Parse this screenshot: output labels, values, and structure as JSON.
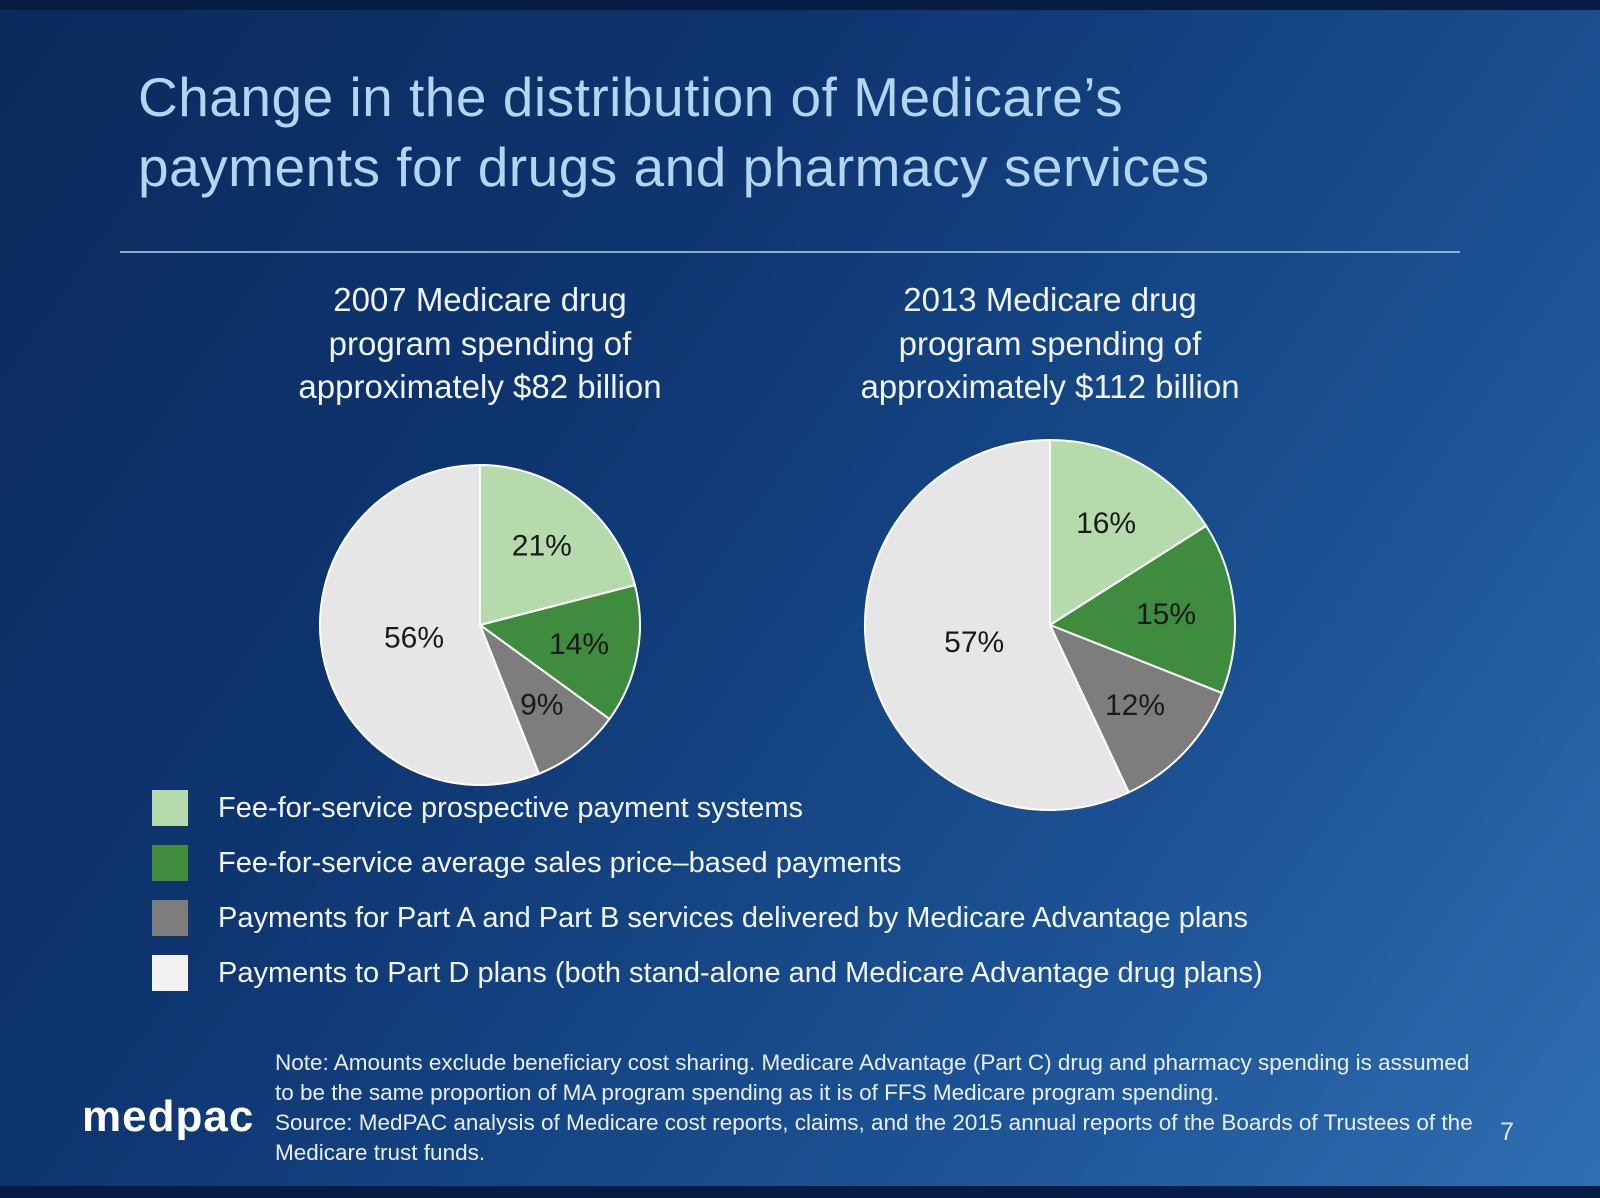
{
  "slide": {
    "title_line1": "Change in the distribution of Medicare’s",
    "title_line2": "payments for drugs and pharmacy services",
    "page_number": "7",
    "logo_text": "medpac"
  },
  "chart_data": [
    {
      "type": "pie",
      "title": "2007 Medicare drug program spending of approximately $82 billion",
      "title_lines": [
        "2007 Medicare drug",
        "program spending of",
        "approximately $82 billion"
      ],
      "labels": [
        "Fee-for-service prospective payment systems",
        "Fee-for-service average sales price–based payments",
        "Payments for Part A and Part B services delivered by Medicare Advantage plans",
        "Payments to Part D plans (both stand-alone and Medicare Advantage drug plans)"
      ],
      "values": [
        21,
        14,
        9,
        56
      ],
      "value_labels": [
        "21%",
        "14%",
        "9%",
        "56%"
      ],
      "colors": [
        "#b5dbad",
        "#3f8c3f",
        "#7d7d7d",
        "#e6e6e6"
      ],
      "start_angle_deg": -90,
      "direction": "clockwise",
      "legend_position": "bottom-left"
    },
    {
      "type": "pie",
      "title": "2013 Medicare drug program spending of approximately $112 billion",
      "title_lines": [
        "2013 Medicare drug",
        "program spending of",
        "approximately $112 billion"
      ],
      "labels": [
        "Fee-for-service prospective payment systems",
        "Fee-for-service average sales price–based payments",
        "Payments for Part A and Part B services delivered by Medicare Advantage plans",
        "Payments to Part D plans (both stand-alone and Medicare Advantage drug plans)"
      ],
      "values": [
        16,
        15,
        12,
        57
      ],
      "value_labels": [
        "16%",
        "15%",
        "12%",
        "57%"
      ],
      "colors": [
        "#b5dbad",
        "#3f8c3f",
        "#7d7d7d",
        "#e6e6e6"
      ],
      "start_angle_deg": -90,
      "direction": "clockwise",
      "legend_position": "bottom-left"
    }
  ],
  "legend": {
    "items": [
      {
        "label": "Fee-for-service prospective payment systems",
        "color": "#b5dbad"
      },
      {
        "label": "Fee-for-service average sales price–based payments",
        "color": "#3f8c3f"
      },
      {
        "label": "Payments for Part A and Part B services delivered by Medicare Advantage plans",
        "color": "#7d7d7d"
      },
      {
        "label": "Payments to Part D plans (both stand-alone and Medicare Advantage drug plans)",
        "color": "#f2f2f2"
      }
    ]
  },
  "footer": {
    "note": "Note: Amounts exclude beneficiary cost sharing. Medicare Advantage (Part C) drug and pharmacy spending is assumed to be the same proportion of MA program spending as it is of FFS Medicare program spending.",
    "source": "Source: MedPAC analysis of Medicare cost reports, claims, and the 2015 annual reports of the Boards of Trustees of the Medicare trust funds."
  },
  "colors": {
    "background_dark": "#0b2a5c",
    "background_light": "#2f6fb2",
    "title_text": "#b3d6f0",
    "body_text": "#f2f6fa"
  }
}
